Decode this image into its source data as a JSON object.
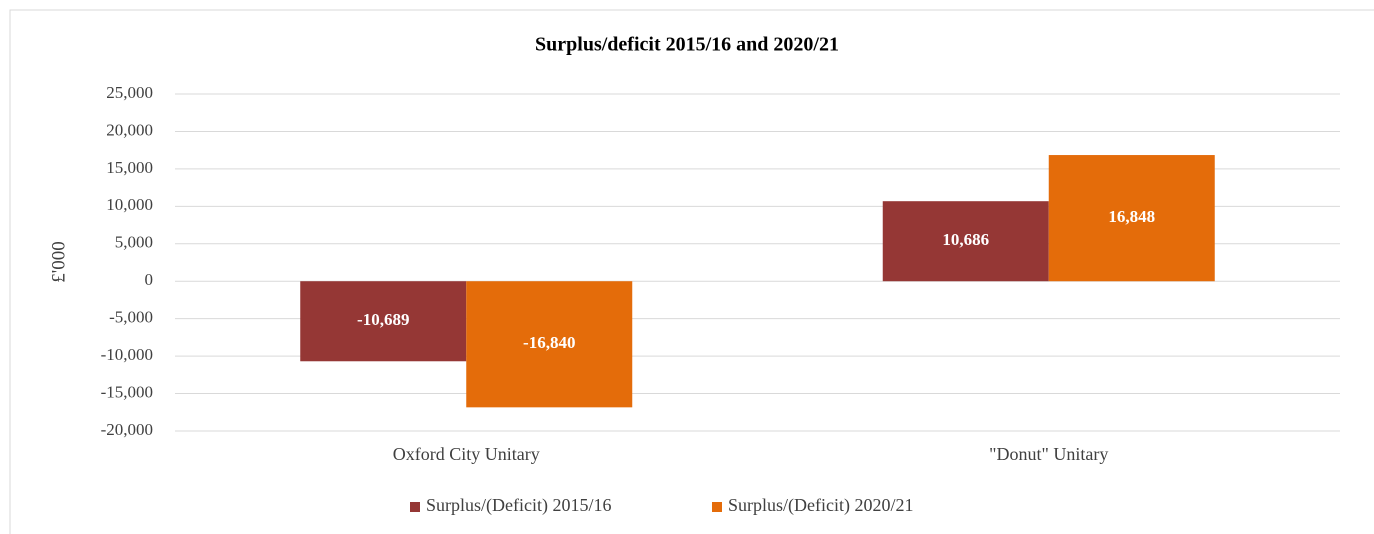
{
  "chart_data": {
    "type": "bar",
    "title": "Surplus/deficit 2015/16 and 2020/21",
    "y_label": "£'000",
    "categories": [
      "Oxford City Unitary",
      "\"Donut\" Unitary"
    ],
    "series": [
      {
        "name": "Surplus/(Deficit) 2015/16",
        "color": "#953735",
        "values": [
          -10689,
          10686
        ],
        "value_labels": [
          "-10,689",
          "10,686"
        ]
      },
      {
        "name": "Surplus/(Deficit) 2020/21",
        "color": "#e46c0a",
        "values": [
          -16840,
          16848
        ],
        "value_labels": [
          "-16,840",
          "16,848"
        ]
      }
    ],
    "ylim": [
      -20000,
      25000
    ],
    "yticks": [
      {
        "value": -20000,
        "label": "-20,000"
      },
      {
        "value": -15000,
        "label": "-15,000"
      },
      {
        "value": -10000,
        "label": "-10,000"
      },
      {
        "value": -5000,
        "label": "-5,000"
      },
      0,
      {
        "value": 5000,
        "label": "5,000"
      },
      {
        "value": 10000,
        "label": "10,000"
      },
      {
        "value": 15000,
        "label": "15,000"
      },
      {
        "value": 20000,
        "label": "20,000"
      },
      {
        "value": 25000,
        "label": "25,000"
      }
    ],
    "grid": true,
    "legend": "bottom"
  }
}
